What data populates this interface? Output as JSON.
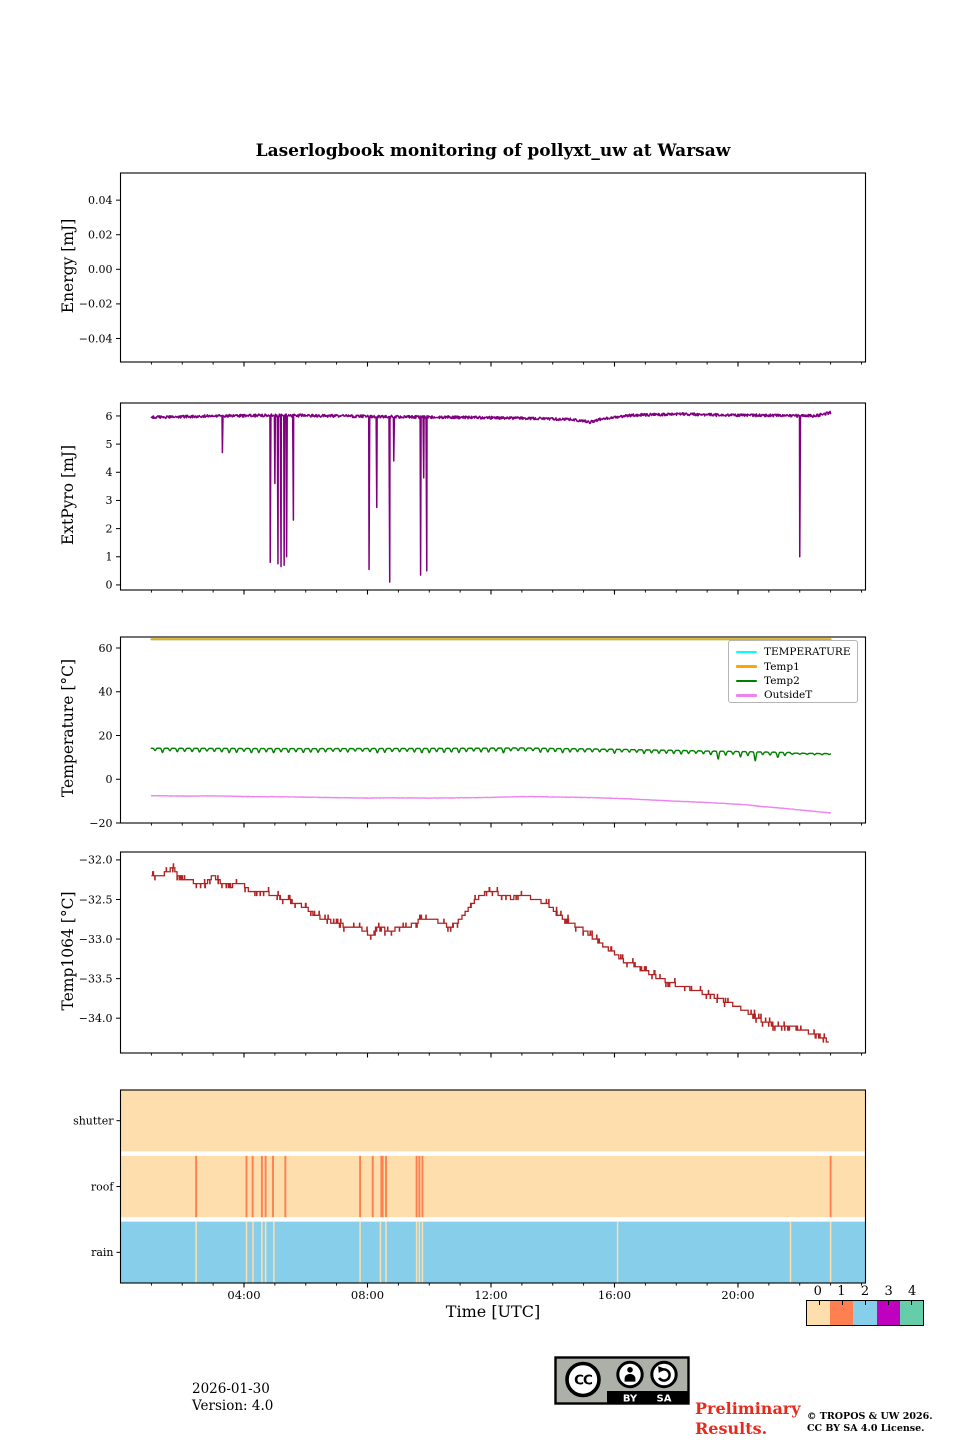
{
  "title": "Laserlogbook monitoring of pollyxt_uw at Warsaw",
  "xaxis": {
    "label": "Time [UTC]",
    "tick_labels": [
      "04:00",
      "08:00",
      "12:00",
      "16:00",
      "20:00"
    ],
    "tick_hours": [
      4,
      8,
      12,
      16,
      20
    ],
    "minor_tick_every_hours": 1,
    "xlim_hours": [
      0,
      24.13
    ]
  },
  "colorbar": {
    "tick_labels": [
      "0",
      "1",
      "2",
      "3",
      "4"
    ],
    "colors": [
      "#FFDEAD",
      "#FF7F50",
      "#87CEEB",
      "#BF00BF",
      "#66CDAA"
    ]
  },
  "footer": {
    "date": "2026-01-30",
    "version": "Version: 4.0",
    "preliminary_line1": "Preliminary",
    "preliminary_line2": "Results.",
    "preliminary_color": "#e8291c",
    "copyright_line1": "© TROPOS & UW 2026.",
    "copyright_line2": "CC BY SA 4.0 License.",
    "cc_badge": {
      "cc_label": "CC",
      "by_label": "BY",
      "sa_label": "SA"
    }
  },
  "chart_data": [
    {
      "id": "energy",
      "type": "line",
      "ylabel": "Energy [mJ]",
      "ytick_values": [
        0.04,
        0.02,
        0,
        -0.02,
        -0.04
      ],
      "ytick_labels": [
        "0.04",
        "0.02",
        "0.00",
        "−0.02",
        "−0.04"
      ],
      "ylim": [
        -0.0536,
        0.0557
      ],
      "series": []
    },
    {
      "id": "extpyro",
      "type": "line",
      "ylabel": "ExtPyro [mJ]",
      "ytick_values": [
        0,
        1,
        2,
        3,
        4,
        5,
        6
      ],
      "ytick_labels": [
        "0",
        "1",
        "2",
        "3",
        "4",
        "5",
        "6"
      ],
      "ylim": [
        -0.18,
        6.46
      ],
      "series": [
        {
          "name": "ExtPyro",
          "color": "#800080",
          "style": "noisy-baseline",
          "time_range": [
            1,
            23
          ],
          "baseline": [
            [
              1,
              5.95
            ],
            [
              3,
              6.0
            ],
            [
              5,
              6.02
            ],
            [
              7,
              6.0
            ],
            [
              9,
              5.97
            ],
            [
              11,
              5.95
            ],
            [
              13,
              5.92
            ],
            [
              14.6,
              5.88
            ],
            [
              15.2,
              5.78
            ],
            [
              15.6,
              5.9
            ],
            [
              16.5,
              6.02
            ],
            [
              18,
              6.07
            ],
            [
              19.5,
              6.03
            ],
            [
              21,
              6.02
            ],
            [
              22.5,
              6.0
            ],
            [
              23,
              6.12
            ]
          ],
          "noise": 0.05,
          "spikes": [
            [
              3.3,
              4.7
            ],
            [
              4.85,
              0.8
            ],
            [
              5.0,
              3.6
            ],
            [
              5.1,
              0.75
            ],
            [
              5.2,
              0.65
            ],
            [
              5.3,
              0.7
            ],
            [
              5.38,
              1.0
            ],
            [
              5.6,
              2.3
            ],
            [
              8.05,
              0.55
            ],
            [
              8.3,
              2.75
            ],
            [
              8.72,
              0.1
            ],
            [
              8.85,
              4.4
            ],
            [
              9.72,
              0.35
            ],
            [
              9.82,
              3.8
            ],
            [
              9.92,
              0.5
            ],
            [
              22.0,
              1.0
            ]
          ]
        }
      ]
    },
    {
      "id": "temperature",
      "type": "line",
      "ylabel": "Temperature [°C]",
      "ytick_values": [
        -20,
        0,
        20,
        40,
        60
      ],
      "ytick_labels": [
        "−20",
        "0",
        "20",
        "40",
        "60"
      ],
      "ylim": [
        -20,
        65.03
      ],
      "legend": [
        {
          "label": "TEMPERATURE",
          "color": "#00FFFF"
        },
        {
          "label": "Temp1",
          "color": "#FFA500"
        },
        {
          "label": "Temp2",
          "color": "#008000"
        },
        {
          "label": "OutsideT",
          "color": "#EE82EE"
        }
      ],
      "series": [
        {
          "name": "TEMPERATURE",
          "color": "#00FFFF",
          "style": "constant",
          "time_range": [
            1,
            23
          ],
          "value": 64
        },
        {
          "name": "Temp1",
          "color": "#FFA500",
          "style": "constant",
          "time_range": [
            1,
            23
          ],
          "value": 64
        },
        {
          "name": "Temp2",
          "color": "#008000",
          "style": "oscillating",
          "time_range": [
            1,
            23
          ],
          "base": [
            [
              1,
              13.4
            ],
            [
              6,
              13.2
            ],
            [
              10,
              13.3
            ],
            [
              13,
              13.5
            ],
            [
              14,
              13.3
            ],
            [
              16,
              12.9
            ],
            [
              18,
              12.4
            ],
            [
              19,
              12.1
            ],
            [
              20,
              11.9
            ],
            [
              21,
              11.6
            ],
            [
              21.8,
              11.4
            ],
            [
              23,
              11.2
            ]
          ],
          "osc_period": 0.24,
          "deep_dips": [
            [
              10.6,
              1.2
            ],
            [
              12.45,
              1.0
            ],
            [
              19.35,
              2.4
            ],
            [
              20.1,
              1.4
            ],
            [
              20.55,
              2.6
            ],
            [
              21.35,
              2.8
            ]
          ],
          "flatten_after": 21.7,
          "noise": 0.12
        },
        {
          "name": "OutsideT",
          "color": "#EE82EE",
          "style": "keypoints",
          "keypoints": [
            [
              1,
              -7.5
            ],
            [
              2,
              -7.7
            ],
            [
              3,
              -7.6
            ],
            [
              4,
              -7.9
            ],
            [
              5,
              -8.0
            ],
            [
              6,
              -8.2
            ],
            [
              7,
              -8.4
            ],
            [
              8,
              -8.6
            ],
            [
              9,
              -8.5
            ],
            [
              10,
              -8.6
            ],
            [
              11,
              -8.5
            ],
            [
              12,
              -8.3
            ],
            [
              12.8,
              -8.0
            ],
            [
              13.5,
              -7.9
            ],
            [
              14,
              -8.1
            ],
            [
              15,
              -8.3
            ],
            [
              15.8,
              -8.6
            ],
            [
              16.5,
              -9.0
            ],
            [
              17.5,
              -9.7
            ],
            [
              18.5,
              -10.3
            ],
            [
              19.5,
              -11.0
            ],
            [
              20.3,
              -11.7
            ],
            [
              20.8,
              -12.5
            ],
            [
              21.5,
              -13.3
            ],
            [
              22,
              -14.0
            ],
            [
              22.5,
              -14.7
            ],
            [
              23,
              -15.4
            ]
          ],
          "noise": 0.22
        }
      ]
    },
    {
      "id": "temp1064",
      "type": "step",
      "ylabel": "Temp1064 [°C]",
      "ytick_values": [
        -32.0,
        -32.5,
        -33.0,
        -33.5,
        -34.0
      ],
      "ytick_labels": [
        "−32.0",
        "−32.5",
        "−33.0",
        "−33.5",
        "−34.0"
      ],
      "ylim": [
        -34.44,
        -31.9
      ],
      "series": [
        {
          "name": "Temp1064",
          "color": "#B22222",
          "style": "stepped",
          "quantize": 0.05,
          "keypoints": [
            [
              1,
              -32.22
            ],
            [
              1.4,
              -32.18
            ],
            [
              1.7,
              -32.1
            ],
            [
              1.9,
              -32.22
            ],
            [
              2.2,
              -32.25
            ],
            [
              2.5,
              -32.3
            ],
            [
              2.8,
              -32.28
            ],
            [
              3,
              -32.2
            ],
            [
              3.3,
              -32.3
            ],
            [
              3.6,
              -32.33
            ],
            [
              3.9,
              -32.28
            ],
            [
              4.2,
              -32.4
            ],
            [
              4.6,
              -32.4
            ],
            [
              5,
              -32.45
            ],
            [
              5.3,
              -32.5
            ],
            [
              5.7,
              -32.55
            ],
            [
              6,
              -32.6
            ],
            [
              6.3,
              -32.7
            ],
            [
              6.6,
              -32.75
            ],
            [
              7,
              -32.8
            ],
            [
              7.4,
              -32.85
            ],
            [
              7.9,
              -32.88
            ],
            [
              8.1,
              -32.98
            ],
            [
              8.3,
              -32.87
            ],
            [
              8.8,
              -32.88
            ],
            [
              9.3,
              -32.85
            ],
            [
              9.7,
              -32.76
            ],
            [
              10.1,
              -32.74
            ],
            [
              10.4,
              -32.8
            ],
            [
              10.7,
              -32.85
            ],
            [
              11,
              -32.75
            ],
            [
              11.2,
              -32.65
            ],
            [
              11.5,
              -32.5
            ],
            [
              11.8,
              -32.42
            ],
            [
              12.1,
              -32.4
            ],
            [
              12.4,
              -32.46
            ],
            [
              12.7,
              -32.48
            ],
            [
              13,
              -32.44
            ],
            [
              13.3,
              -32.48
            ],
            [
              13.6,
              -32.52
            ],
            [
              13.9,
              -32.58
            ],
            [
              14.2,
              -32.7
            ],
            [
              14.6,
              -32.8
            ],
            [
              15,
              -32.88
            ],
            [
              15.3,
              -32.98
            ],
            [
              15.7,
              -33.1
            ],
            [
              16,
              -33.18
            ],
            [
              16.3,
              -33.28
            ],
            [
              16.6,
              -33.32
            ],
            [
              17,
              -33.4
            ],
            [
              17.3,
              -33.47
            ],
            [
              17.6,
              -33.52
            ],
            [
              18,
              -33.58
            ],
            [
              18.4,
              -33.62
            ],
            [
              18.8,
              -33.67
            ],
            [
              19.2,
              -33.72
            ],
            [
              19.5,
              -33.77
            ],
            [
              19.8,
              -33.82
            ],
            [
              20.2,
              -33.9
            ],
            [
              20.5,
              -33.96
            ],
            [
              20.8,
              -34.04
            ],
            [
              21.2,
              -34.09
            ],
            [
              21.6,
              -34.09
            ],
            [
              22,
              -34.14
            ],
            [
              22.4,
              -34.19
            ],
            [
              22.7,
              -34.24
            ],
            [
              22.95,
              -34.3
            ]
          ]
        }
      ]
    },
    {
      "id": "status",
      "type": "status-bands",
      "status_colors": [
        "#FFDEAD",
        "#FF7F50",
        "#87CEEB",
        "#BF00BF",
        "#66CDAA"
      ],
      "rows": [
        {
          "label": "shutter",
          "background_status": 0,
          "event_status": 1,
          "event_times": []
        },
        {
          "label": "roof",
          "background_status": 0,
          "event_status": 1,
          "event_times": [
            2.45,
            4.08,
            4.28,
            4.58,
            4.7,
            4.94,
            5.34,
            7.76,
            8.17,
            8.45,
            8.49,
            8.6,
            9.59,
            9.68,
            9.78,
            23.0
          ]
        },
        {
          "label": "rain",
          "background_status": 2,
          "event_status": 0,
          "event_times": [
            2.45,
            4.08,
            4.29,
            4.58,
            4.7,
            4.97,
            7.76,
            8.42,
            8.6,
            9.59,
            9.68,
            9.78,
            16.1,
            21.7,
            23.0
          ]
        }
      ]
    }
  ]
}
